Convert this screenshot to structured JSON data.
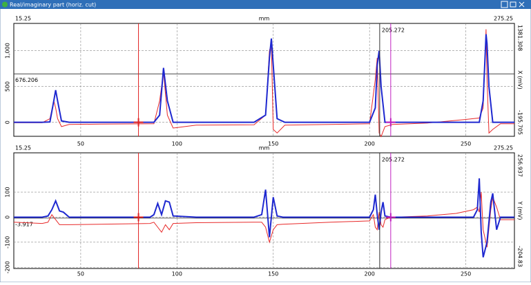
{
  "window": {
    "title": "Real/imaginary part (horiz. cut)"
  },
  "chart_data": [
    {
      "type": "line",
      "x_label": "mm",
      "y_label": "X (mV)",
      "xlim": [
        15.25,
        275.25
      ],
      "xticks": [
        50,
        100,
        150,
        200,
        250
      ],
      "ylim": [
        -195.705,
        1381.308
      ],
      "yticks": [
        0,
        500,
        {
          "value": 1000,
          "label": "1,000"
        }
      ],
      "grid": true,
      "cursor_x": [
        80,
        205.272,
        211
      ],
      "cursor_colors": [
        "#e02020",
        "#303030",
        "#c020c0"
      ],
      "hline": 676.206,
      "x": [
        15.25,
        30,
        34,
        36,
        37,
        38,
        40,
        44,
        60,
        88,
        91,
        93,
        95,
        98,
        110,
        140,
        146,
        148,
        149,
        150,
        152,
        156,
        180,
        200,
        203,
        204,
        205,
        206,
        208,
        212,
        230,
        250,
        257,
        259,
        260.5,
        261,
        262,
        264,
        268,
        275.25
      ],
      "series": [
        {
          "name": "Imaginary",
          "color": "#e82828",
          "values": [
            -5,
            -5,
            50,
            300,
            200,
            50,
            -60,
            -30,
            -25,
            -20,
            300,
            700,
            100,
            -80,
            -40,
            -35,
            100,
            1000,
            1100,
            -100,
            -150,
            -40,
            -30,
            -20,
            600,
            900,
            -150,
            -200,
            -60,
            -30,
            -10,
            40,
            60,
            200,
            1300,
            600,
            -150,
            -100,
            -20,
            -20
          ]
        },
        {
          "name": "Real",
          "color": "#1e28d0",
          "values": [
            0,
            0,
            5,
            300,
            450,
            300,
            20,
            0,
            0,
            0,
            100,
            760,
            300,
            0,
            0,
            0,
            100,
            900,
            1170,
            800,
            50,
            0,
            0,
            0,
            200,
            800,
            1000,
            500,
            0,
            0,
            0,
            0,
            0,
            300,
            1230,
            1100,
            500,
            0,
            0,
            0
          ]
        }
      ]
    },
    {
      "type": "line",
      "x_label": "mm",
      "y_label": "Y (mV)",
      "xlim": [
        15.25,
        275.25
      ],
      "xticks": [
        50,
        100,
        150,
        200,
        250
      ],
      "ylim": [
        -204.83,
        256.937
      ],
      "yticks": [
        -200,
        -100,
        0,
        100
      ],
      "grid": true,
      "cursor_x": [
        80,
        205.272,
        211
      ],
      "cursor_colors": [
        "#e02020",
        "#303030",
        "#c020c0"
      ],
      "hline": -3.917,
      "x": [
        15.25,
        30,
        33,
        35,
        37,
        39,
        41,
        44,
        60,
        86,
        88,
        90,
        92,
        94,
        96,
        98,
        110,
        140,
        144,
        146,
        148,
        150,
        152,
        155,
        180,
        200,
        202,
        203,
        204,
        205,
        206,
        207,
        208,
        211,
        230,
        245,
        254,
        256,
        257,
        258,
        259,
        261,
        263,
        264,
        266,
        268,
        275.25
      ],
      "series": [
        {
          "name": "Imaginary",
          "color": "#e82828",
          "values": [
            -20,
            -25,
            -20,
            10,
            -10,
            -30,
            -30,
            -30,
            -28,
            -25,
            -20,
            -40,
            -60,
            -30,
            -50,
            -25,
            -22,
            -20,
            -20,
            -40,
            -100,
            -50,
            -30,
            -28,
            -20,
            -15,
            10,
            -40,
            -50,
            20,
            -30,
            -40,
            -10,
            0,
            5,
            15,
            30,
            40,
            20,
            100,
            -50,
            -120,
            30,
            80,
            40,
            -10,
            -10
          ]
        },
        {
          "name": "Real",
          "color": "#1e28d0",
          "values": [
            0,
            0,
            5,
            30,
            65,
            25,
            20,
            0,
            0,
            0,
            10,
            55,
            10,
            65,
            60,
            5,
            0,
            0,
            10,
            110,
            -80,
            80,
            5,
            0,
            0,
            0,
            30,
            90,
            10,
            -50,
            20,
            60,
            5,
            0,
            0,
            0,
            0,
            30,
            155,
            -60,
            -160,
            -100,
            60,
            95,
            -50,
            0,
            0
          ]
        }
      ]
    }
  ]
}
